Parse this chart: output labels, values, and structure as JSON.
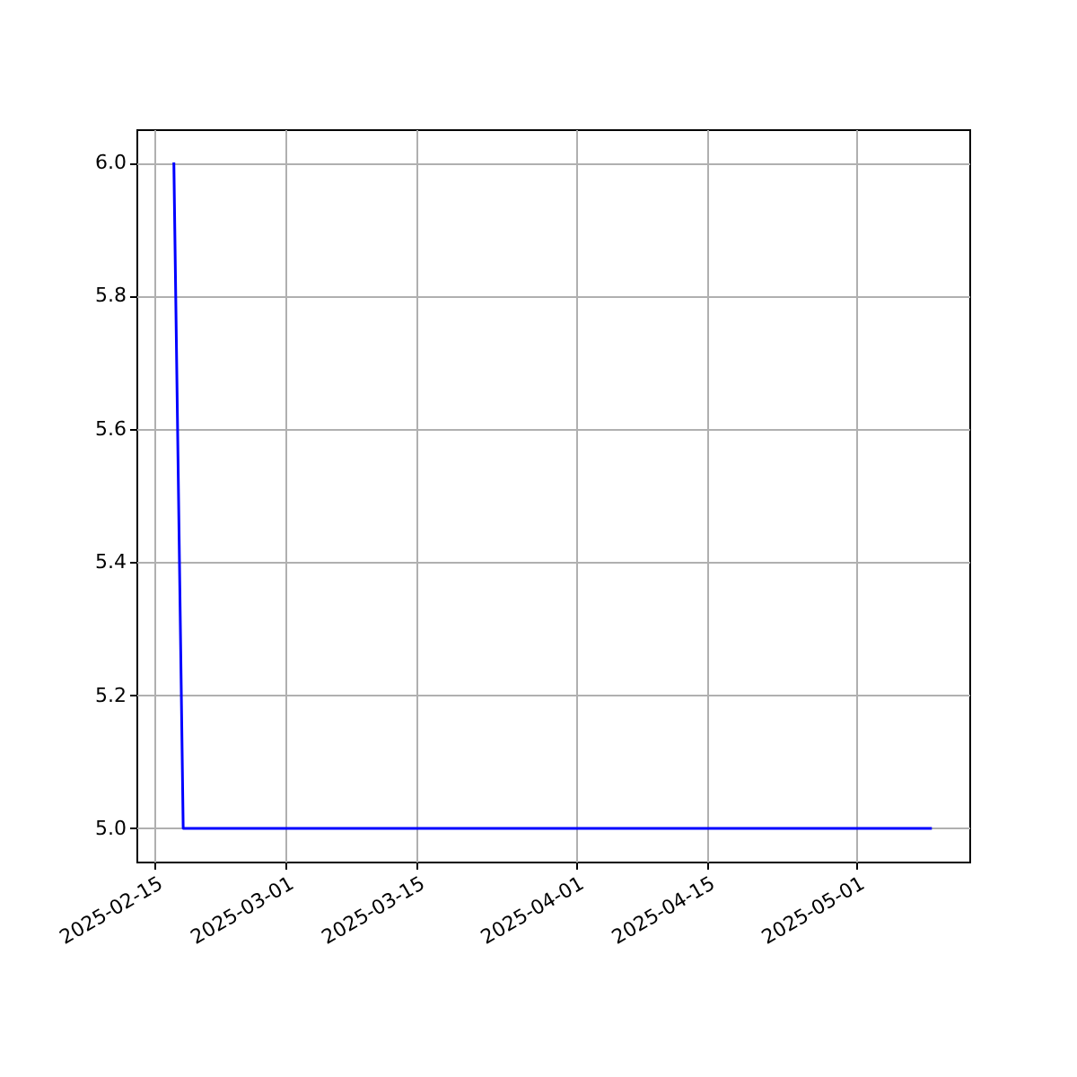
{
  "chart_data": {
    "type": "line",
    "x": [
      "2025-02-17",
      "2025-02-18",
      "2025-05-09"
    ],
    "series": [
      {
        "color": "#0000ff",
        "values": [
          6.0,
          5.0,
          5.0
        ]
      }
    ],
    "xlim": [
      "2025-02-13",
      "2025-05-13"
    ],
    "xticks": [
      "2025-02-15",
      "2025-03-01",
      "2025-03-15",
      "2025-04-01",
      "2025-04-15",
      "2025-05-01"
    ],
    "ylim": [
      4.95,
      6.05
    ],
    "yticks": [
      {
        "value": 5.0,
        "label": "5.0"
      },
      {
        "value": 5.2,
        "label": "5.2"
      },
      {
        "value": 5.4,
        "label": "5.4"
      },
      {
        "value": 5.6,
        "label": "5.6"
      },
      {
        "value": 5.8,
        "label": "5.8"
      },
      {
        "value": 6.0,
        "label": "6.0"
      }
    ],
    "grid": true,
    "marker": "none",
    "line_style": "solid"
  }
}
